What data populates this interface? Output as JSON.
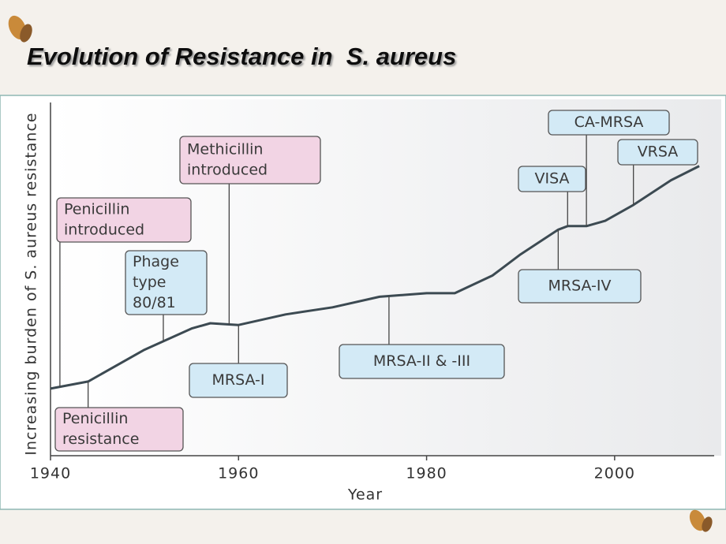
{
  "chart_data": {
    "type": "line",
    "title": "Evolution of Resistance in  S. aureus",
    "xlabel": "Year",
    "ylabel": "Increasing burden of S. aureus resistance",
    "xlim": [
      1940,
      2010
    ],
    "ylim": [
      0,
      100
    ],
    "xticks": [
      1940,
      1960,
      1980,
      2000
    ],
    "x": [
      1940,
      1944,
      1950,
      1955,
      1957,
      1960,
      1965,
      1970,
      1975,
      1980,
      1983,
      1987,
      1990,
      1994,
      1995,
      1997,
      1999,
      2002,
      2006,
      2009
    ],
    "y": [
      19,
      21,
      30,
      36,
      37.5,
      37,
      40,
      42,
      45,
      46,
      46,
      51,
      57,
      64,
      65,
      65,
      66.5,
      71,
      78,
      82
    ],
    "color": "#3c4a52",
    "annotations": [
      {
        "lines": [
          "Penicillin",
          "introduced"
        ],
        "x": 1941,
        "color": "#f2d4e4"
      },
      {
        "lines": [
          "Penicillin",
          "resistance"
        ],
        "x": 1944,
        "color": "#f2d4e4"
      },
      {
        "lines": [
          "Phage",
          "type",
          "80/81"
        ],
        "x": 1952,
        "color": "#d3eaf6"
      },
      {
        "lines": [
          "Methicillin",
          "introduced"
        ],
        "x": 1959,
        "color": "#f2d4e4"
      },
      {
        "lines": [
          "MRSA-I"
        ],
        "x": 1960,
        "color": "#d3eaf6"
      },
      {
        "lines": [
          "MRSA-II & -III"
        ],
        "x": 1976,
        "color": "#d3eaf6"
      },
      {
        "lines": [
          "VISA"
        ],
        "x": 1995,
        "color": "#d3eaf6"
      },
      {
        "lines": [
          "MRSA-IV"
        ],
        "x": 1994,
        "color": "#d3eaf6"
      },
      {
        "lines": [
          "CA-MRSA"
        ],
        "x": 1997,
        "color": "#d3eaf6"
      },
      {
        "lines": [
          "VRSA"
        ],
        "x": 2002,
        "color": "#d3eaf6"
      }
    ]
  }
}
